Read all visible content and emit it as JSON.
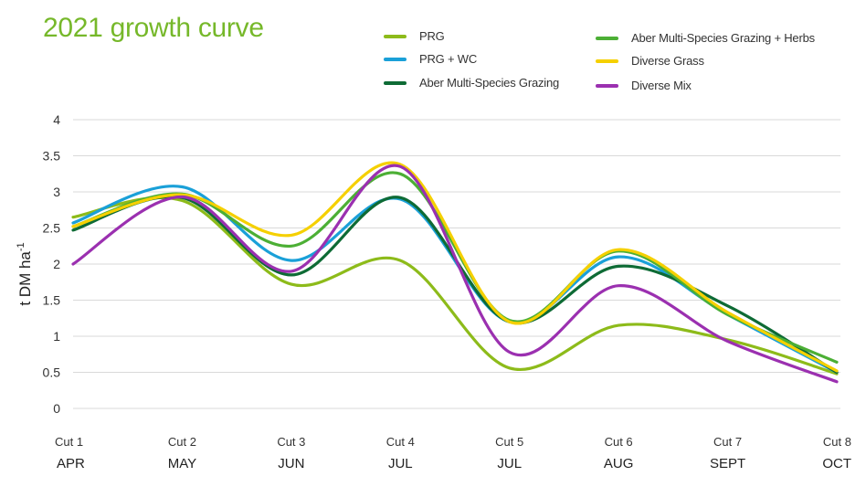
{
  "chart_data": {
    "type": "line",
    "title": "2021 growth curve",
    "ylabel": "t DM ha",
    "ylabel_superscript": "-1",
    "xlabel": "",
    "ylim": [
      0,
      4
    ],
    "yticks": [
      "0",
      "0.5",
      "1",
      "1.5",
      "2",
      "2.5",
      "3",
      "3.5",
      "4"
    ],
    "grid": true,
    "legend_placement": "top-right",
    "categories": [
      "Cut 1",
      "Cut 2",
      "Cut 3",
      "Cut 4",
      "Cut 5",
      "Cut 6",
      "Cut 7",
      "Cut 8"
    ],
    "months": [
      "APR",
      "MAY",
      "JUN",
      "JUL",
      "JUL",
      "AUG",
      "SEPT",
      "OCT"
    ],
    "series": [
      {
        "name": "PRG",
        "color": "#8dbb1a",
        "values": [
          2.65,
          2.88,
          1.72,
          2.05,
          0.56,
          1.15,
          0.95,
          0.48
        ]
      },
      {
        "name": "PRG + WC",
        "color": "#1aa0d8",
        "values": [
          2.57,
          3.07,
          2.05,
          2.9,
          1.2,
          2.1,
          1.3,
          0.5
        ]
      },
      {
        "name": "Aber Multi-Species Grazing",
        "color": "#0e6b35",
        "values": [
          2.47,
          2.92,
          1.85,
          2.92,
          1.2,
          1.97,
          1.42,
          0.5
        ]
      },
      {
        "name": "Aber Multi-Species Grazing + Herbs",
        "color": "#4caf35",
        "values": [
          2.52,
          2.97,
          2.25,
          3.25,
          1.22,
          2.18,
          1.3,
          0.64
        ]
      },
      {
        "name": "Diverse Grass",
        "color": "#f5d000",
        "values": [
          2.52,
          2.96,
          2.4,
          3.38,
          1.2,
          2.2,
          1.33,
          0.52
        ]
      },
      {
        "name": "Diverse Mix",
        "color": "#9b30b0",
        "values": [
          2.0,
          2.93,
          1.9,
          3.35,
          0.78,
          1.7,
          0.93,
          0.37
        ]
      }
    ]
  }
}
